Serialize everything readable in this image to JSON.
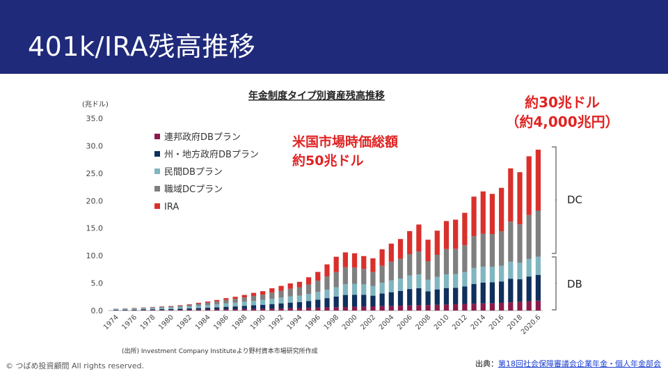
{
  "header": {
    "title": "401k/IRA残高推移"
  },
  "chart_data": {
    "type": "bar",
    "stacked": true,
    "title": "年金制度タイプ別資産残高推移",
    "ylabel": "(兆ドル)",
    "ylim": [
      0,
      35
    ],
    "yticks": [
      "0.0",
      "5.0",
      "10.0",
      "15.0",
      "20.0",
      "25.0",
      "30.0",
      "35.0"
    ],
    "source_note": "(出所) Investment Company Instituteより野村資本市場研究所作成",
    "categories": [
      "1974",
      "1975",
      "1976",
      "1977",
      "1978",
      "1979",
      "1980",
      "1981",
      "1982",
      "1983",
      "1984",
      "1985",
      "1986",
      "1987",
      "1988",
      "1989",
      "1990",
      "1991",
      "1992",
      "1993",
      "1994",
      "1995",
      "1996",
      "1997",
      "1998",
      "1999",
      "2000",
      "2001",
      "2002",
      "2003",
      "2004",
      "2005",
      "2006",
      "2007",
      "2008",
      "2009",
      "2010",
      "2011",
      "2012",
      "2013",
      "2014",
      "2015",
      "2016",
      "2017",
      "2018",
      "2019",
      "2020.6"
    ],
    "xtick_labels": [
      "1974",
      "1976",
      "1978",
      "1980",
      "1982",
      "1984",
      "1986",
      "1988",
      "1990",
      "1992",
      "1994",
      "1996",
      "1998",
      "2000",
      "2002",
      "2004",
      "2006",
      "2008",
      "2010",
      "2012",
      "2014",
      "2016",
      "2018",
      "2020.6"
    ],
    "series": [
      {
        "name": "連邦政府DBプラン",
        "color": "#8b1a4a",
        "values": [
          0.04,
          0.05,
          0.06,
          0.07,
          0.08,
          0.09,
          0.1,
          0.12,
          0.14,
          0.16,
          0.18,
          0.2,
          0.23,
          0.25,
          0.28,
          0.3,
          0.33,
          0.36,
          0.39,
          0.42,
          0.45,
          0.48,
          0.52,
          0.56,
          0.6,
          0.64,
          0.68,
          0.72,
          0.76,
          0.8,
          0.84,
          0.88,
          0.92,
          0.97,
          1.0,
          1.05,
          1.1,
          1.15,
          1.2,
          1.25,
          1.3,
          1.35,
          1.4,
          1.5,
          1.6,
          1.7,
          1.8
        ]
      },
      {
        "name": "州・地方政府DBプラン",
        "color": "#0f2f5c",
        "values": [
          0.08,
          0.09,
          0.1,
          0.12,
          0.14,
          0.16,
          0.18,
          0.2,
          0.24,
          0.28,
          0.32,
          0.38,
          0.45,
          0.5,
          0.58,
          0.65,
          0.72,
          0.82,
          0.92,
          1.02,
          1.1,
          1.25,
          1.45,
          1.7,
          1.95,
          2.2,
          2.2,
          2.15,
          1.95,
          2.3,
          2.5,
          2.7,
          3.0,
          3.1,
          2.5,
          2.8,
          3.0,
          3.0,
          3.2,
          3.6,
          3.8,
          3.8,
          3.9,
          4.3,
          4.1,
          4.5,
          4.7
        ]
      },
      {
        "name": "民間DBプラン",
        "color": "#7fb6c0",
        "values": [
          0.14,
          0.16,
          0.18,
          0.2,
          0.24,
          0.27,
          0.3,
          0.33,
          0.38,
          0.45,
          0.5,
          0.57,
          0.65,
          0.7,
          0.75,
          0.82,
          0.88,
          0.98,
          1.05,
          1.12,
          1.15,
          1.28,
          1.42,
          1.55,
          1.7,
          1.95,
          2.0,
          1.9,
          1.75,
          1.95,
          2.15,
          2.25,
          2.45,
          2.5,
          2.1,
          2.3,
          2.5,
          2.5,
          2.6,
          2.9,
          2.9,
          2.8,
          2.85,
          3.1,
          3.0,
          3.2,
          3.3
        ]
      },
      {
        "name": "職域DCプラン",
        "color": "#7f7f7f",
        "values": [
          0.06,
          0.08,
          0.1,
          0.12,
          0.14,
          0.17,
          0.2,
          0.24,
          0.3,
          0.38,
          0.44,
          0.52,
          0.6,
          0.68,
          0.78,
          0.9,
          0.96,
          1.12,
          1.25,
          1.4,
          1.5,
          1.75,
          2.05,
          2.4,
          2.75,
          3.1,
          2.95,
          2.8,
          2.55,
          3.1,
          3.4,
          3.6,
          3.9,
          4.2,
          3.4,
          4.0,
          4.6,
          4.6,
          4.9,
          5.8,
          6.0,
          6.0,
          6.3,
          7.3,
          7.0,
          8.0,
          8.4
        ]
      },
      {
        "name": "IRA",
        "color": "#d9302c",
        "values": [
          0.01,
          0.02,
          0.03,
          0.04,
          0.05,
          0.06,
          0.06,
          0.08,
          0.1,
          0.15,
          0.2,
          0.25,
          0.33,
          0.38,
          0.45,
          0.55,
          0.64,
          0.78,
          0.88,
          0.99,
          1.03,
          1.3,
          1.6,
          2.2,
          2.8,
          2.7,
          2.6,
          2.35,
          2.5,
          3.0,
          3.3,
          3.6,
          4.2,
          4.9,
          3.9,
          4.4,
          5.1,
          5.3,
          5.9,
          7.2,
          7.7,
          7.3,
          7.9,
          9.7,
          9.5,
          10.7,
          11.1
        ]
      }
    ]
  },
  "callouts": {
    "top_line1": "約30兆ドル",
    "top_line2": "（約4,000兆円）",
    "mid_line1": "米国市場時価総額",
    "mid_line2": "約50兆ドル"
  },
  "brackets": {
    "dc": "DC",
    "db": "DB"
  },
  "footer": {
    "copyright": "© つばめ投資顧問 All rights reserved.",
    "source_prefix": "出典：",
    "source_link": "第18回社会保障審議会企業年金・個人年金部会"
  },
  "colors": {
    "header_bg": "#1f2a7a",
    "accent_red": "#e02323"
  }
}
